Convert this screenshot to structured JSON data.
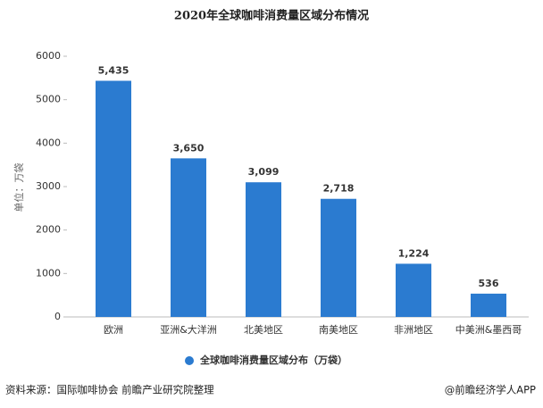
{
  "chart_data": {
    "type": "bar",
    "title": "2020年全球咖啡消费量区域分布情况",
    "y_label": "单位：万袋",
    "categories": [
      "欧洲",
      "亚洲&大洋洲",
      "北美地区",
      "南美地区",
      "非洲地区",
      "中美洲&墨西哥"
    ],
    "series": [
      {
        "name": "全球咖啡消费量区域分布（万袋）",
        "color": "#2b7bd0",
        "values": [
          5435,
          3650,
          3099,
          2718,
          1224,
          536
        ],
        "value_labels": [
          "5,435",
          "3,650",
          "3,099",
          "2,718",
          "1,224",
          "536"
        ]
      }
    ],
    "ylim": [
      0,
      6000
    ],
    "yticks": [
      0,
      1000,
      2000,
      3000,
      4000,
      5000,
      6000
    ],
    "grid": false,
    "source": "资料来源：国际咖啡协会 前瞻产业研究院整理",
    "credit": "@前瞻经济学人APP"
  }
}
